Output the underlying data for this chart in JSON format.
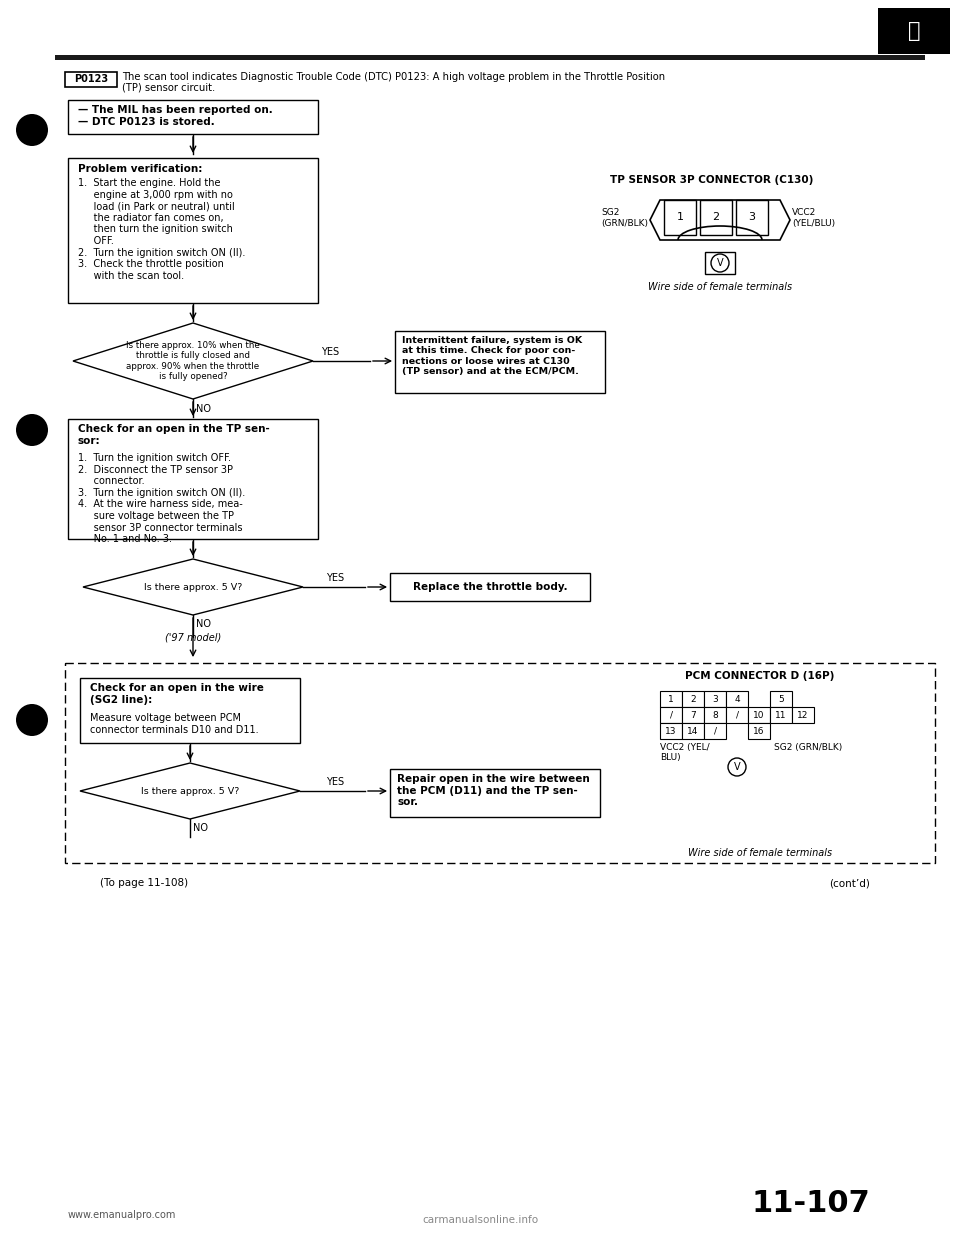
{
  "bg_color": "#ffffff",
  "title_code": "P0123",
  "title_text": "The scan tool indicates Diagnostic Trouble Code (DTC) P0123: A high voltage problem in the Throttle Position\n(TP) sensor circuit.",
  "mil_line1": "— The MIL has been reported on.",
  "mil_line2": "— DTC P0123 is stored.",
  "prob_verif_title": "Problem verification:",
  "prob_verif_body": "1.  Start the engine. Hold the\n     engine at 3,000 rpm with no\n     load (in Park or neutral) until\n     the radiator fan comes on,\n     then turn the ignition switch\n     OFF.\n2.  Turn the ignition switch ON (II).\n3.  Check the throttle position\n     with the scan tool.",
  "diamond1_text": "Is there approx. 10% when the\nthrottle is fully closed and\napprox. 90% when the throttle\nis fully opened?",
  "intermittent_box": "Intermittent failure, system is OK\nat this time. Check for poor con-\nnections or loose wires at C130\n(TP sensor) and at the ECM/PCM.",
  "tp_sensor_title": "TP SENSOR 3P CONNECTOR (C130)",
  "sg2_label": "SG2\n(GRN/BLK)",
  "vcc2_label": "VCC2\n(YEL/BLU)",
  "wire_side_label": "Wire side of female terminals",
  "open_tp_title_bold": "Check for an open in the TP sen-\nsor:",
  "open_tp_body": "1.  Turn the ignition switch OFF.\n2.  Disconnect the TP sensor 3P\n     connector.\n3.  Turn the ignition switch ON (II).\n4.  At the wire harness side, mea-\n     sure voltage between the TP\n     sensor 3P connector terminals\n     No. 1 and No. 3.",
  "diamond2_text": "Is there approx. 5 V?",
  "replace_box": "Replace the throttle body.",
  "model97_label": "('97 model)",
  "pcm_section_title": "PCM CONNECTOR D (16P)",
  "vcc2_pcm_label": "VCC2 (YEL/\nBLU)",
  "sg2_pcm_label": "SG2 (GRN/BLK)",
  "check_sg2_bold": "Check for an open in the wire\n(SG2 line):",
  "check_sg2_body": "Measure voltage between PCM\nconnector terminals D10 and D11.",
  "diamond3_text": "Is there approx. 5 V?",
  "repair_box_bold": "Repair open in the wire between\nthe PCM (D11) and the TP sen-\nsor.",
  "wire_side_pcm": "Wire side of female terminals",
  "to_page": "(To page 11-108)",
  "contd": "(cont’d)",
  "page_num": "11-107",
  "website": "www.emanualpro.com",
  "watermark": "carmanualsonline.info"
}
